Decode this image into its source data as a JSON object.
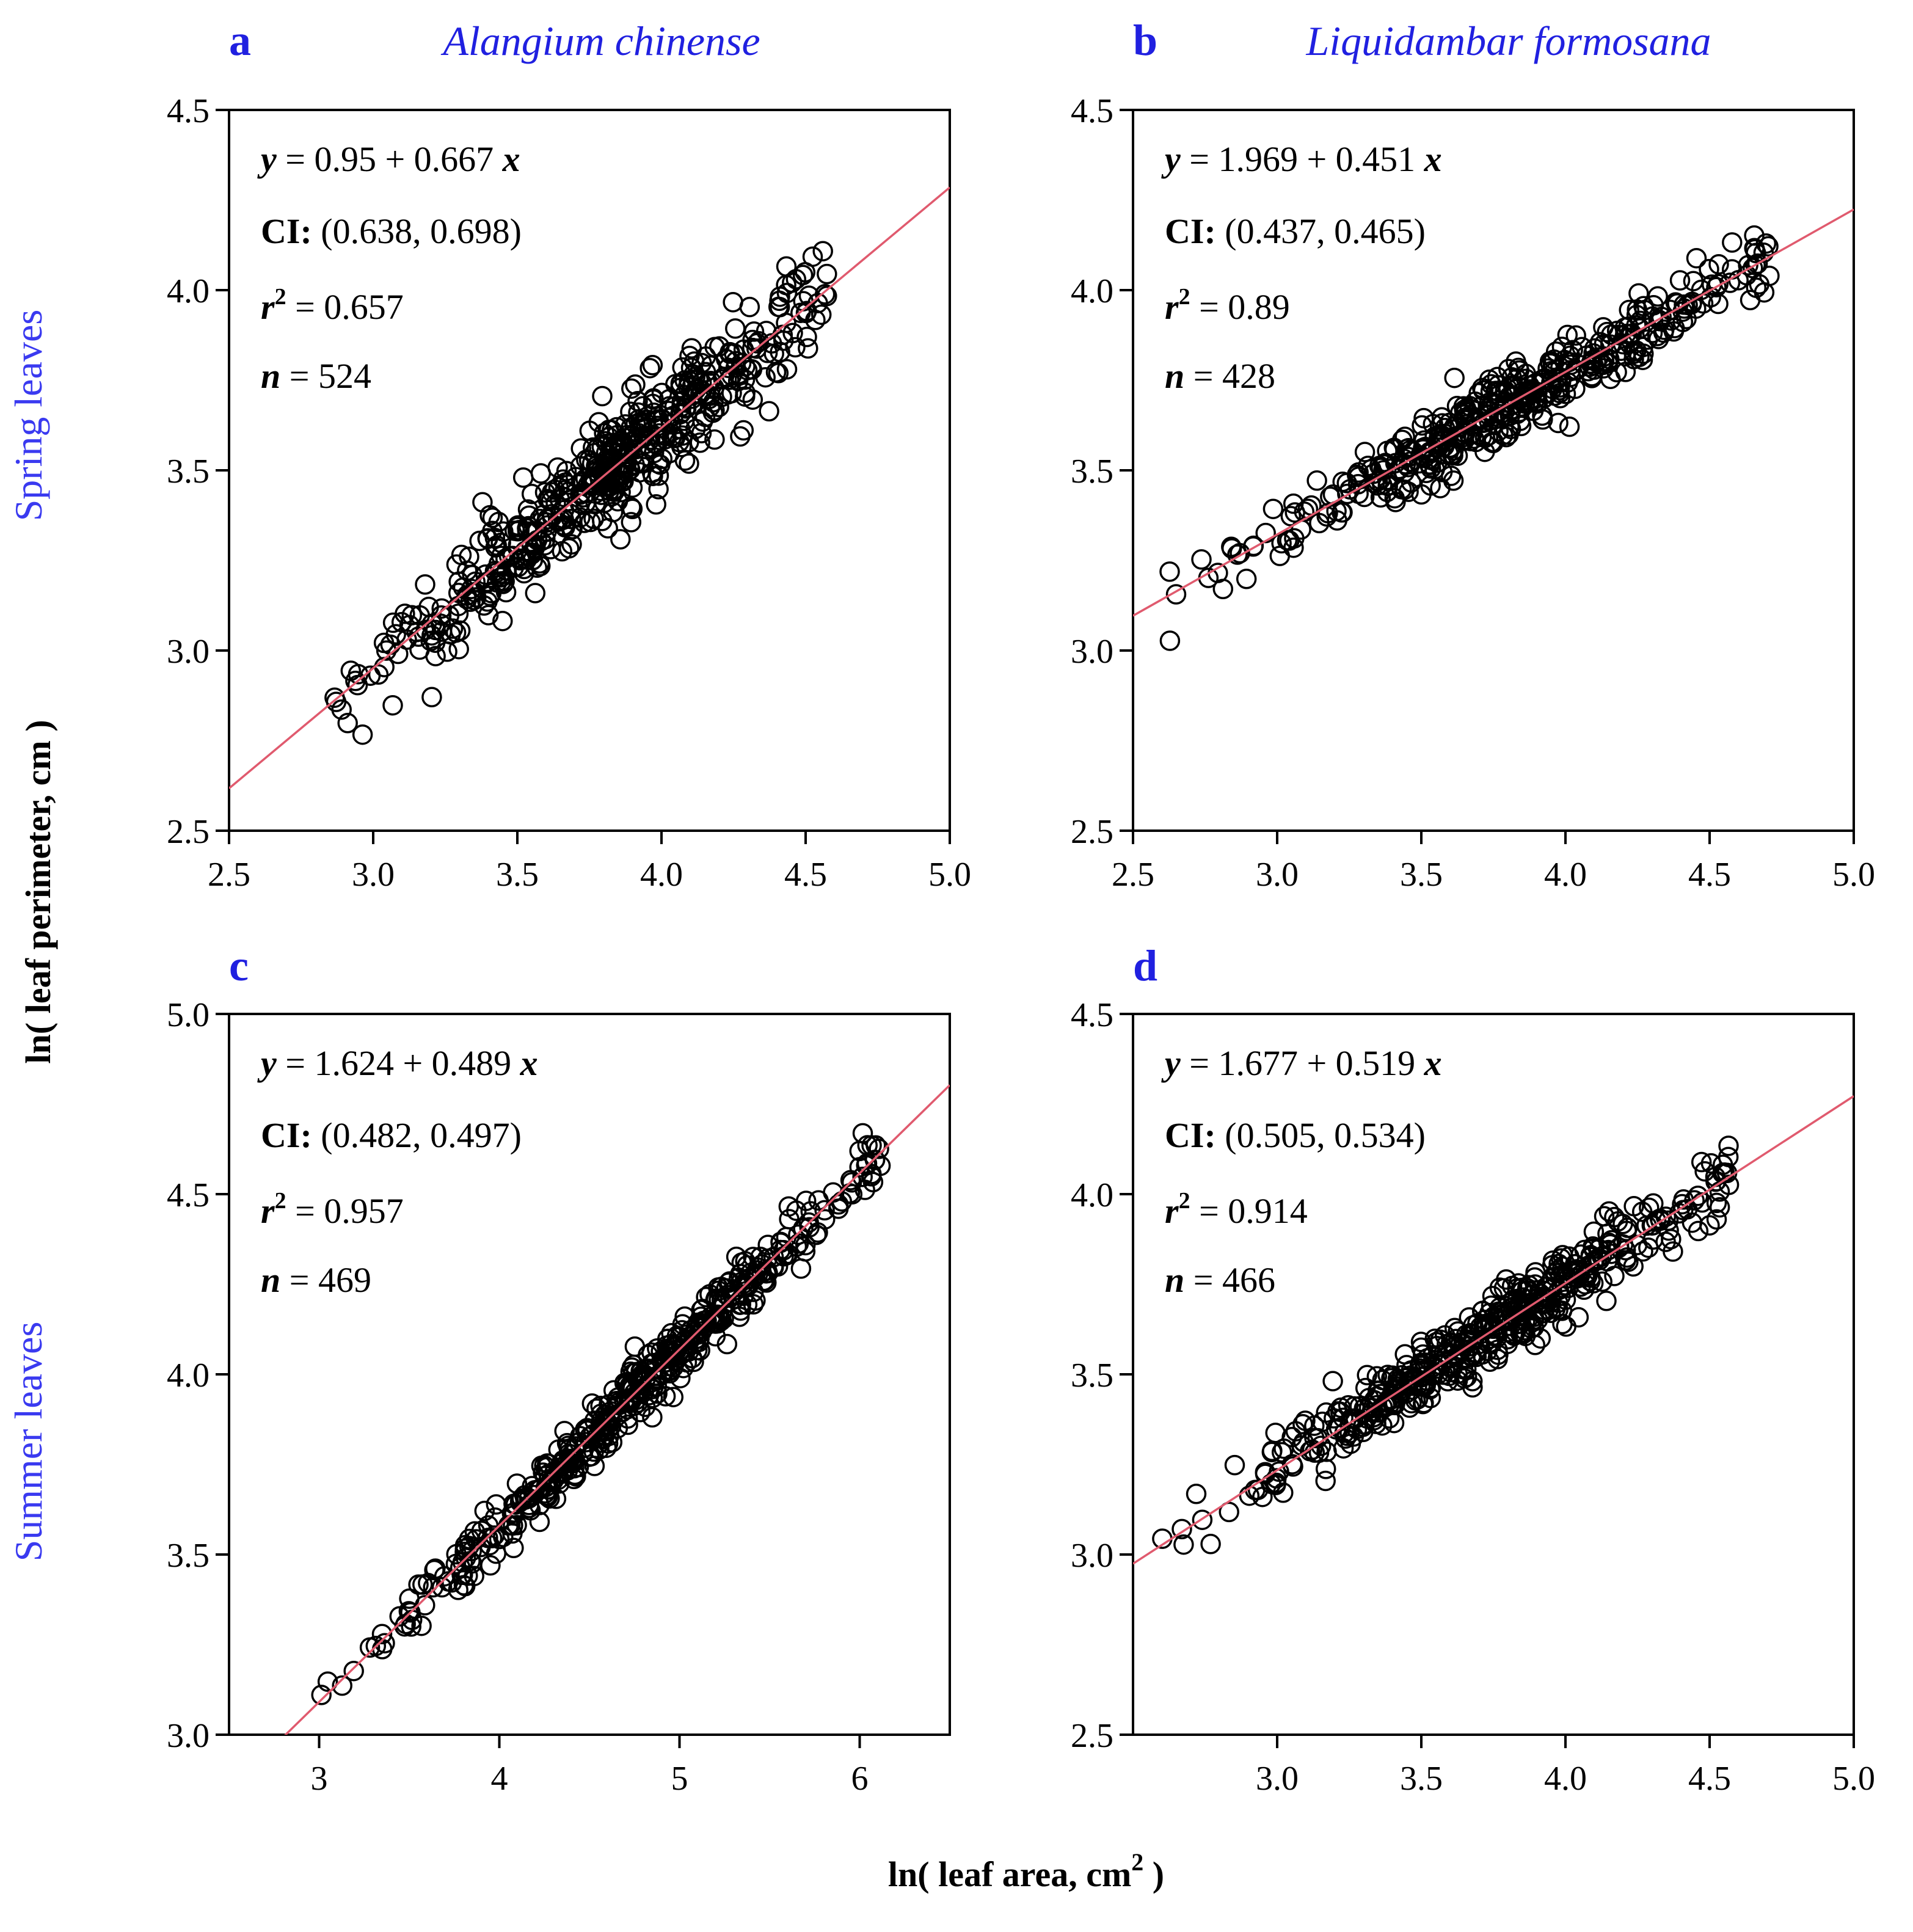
{
  "figure": {
    "ylabel": "ln( leaf perimeter,  cm )",
    "xlabel_main": "ln( leaf area,  cm",
    "xlabel_sup": "2",
    "xlabel_end": " )",
    "row_labels": [
      "Spring leaves",
      "Summer leaves"
    ],
    "species": [
      "Alangium chinense",
      "Liquidambar formosana"
    ],
    "colors": {
      "row_label": "#3a3af0",
      "species": "#2020e0",
      "fit_line": "#e05a6e",
      "marker": "#000000",
      "text": "#000000"
    }
  },
  "chart_data": [
    {
      "type": "scatter",
      "panel": "a",
      "title": "Alangium chinense",
      "xlim": [
        2.5,
        5.0
      ],
      "ylim": [
        2.5,
        4.5
      ],
      "xticks": [
        2.5,
        3.0,
        3.5,
        4.0,
        4.5,
        5.0
      ],
      "xtick_labels": [
        "2.5",
        "3.0",
        "3.5",
        "4.0",
        "4.5",
        "5.0"
      ],
      "yticks": [
        2.5,
        3.0,
        3.5,
        4.0,
        4.5
      ],
      "ytick_labels": [
        "2.5",
        "3.0",
        "3.5",
        "4.0",
        "4.5"
      ],
      "fit": {
        "intercept": 0.95,
        "slope": 0.667
      },
      "annotation": {
        "eq_y": "y",
        "eq_mid": " = 0.95 + 0.667 ",
        "eq_x": "x",
        "ci_label": "CI:",
        "ci_value": " (0.638, 0.698)",
        "r2_label": "r",
        "r2_sup": "2",
        "r2_value": " = 0.657",
        "n_label": "n",
        "n_value": " = 524"
      },
      "n": 524,
      "r2": 0.657,
      "ci": [
        0.638,
        0.698
      ],
      "point_summary": {
        "count": 524,
        "x_range": [
          2.84,
          4.58
        ],
        "residual_sd": 0.075
      }
    },
    {
      "type": "scatter",
      "panel": "b",
      "title": "Liquidambar formosana",
      "xlim": [
        2.5,
        5.0
      ],
      "ylim": [
        2.5,
        4.5
      ],
      "xticks": [
        2.5,
        3.0,
        3.5,
        4.0,
        4.5,
        5.0
      ],
      "xtick_labels": [
        "2.5",
        "3.0",
        "3.5",
        "4.0",
        "4.5",
        "5.0"
      ],
      "yticks": [
        2.5,
        3.0,
        3.5,
        4.0,
        4.5
      ],
      "ytick_labels": [
        "2.5",
        "3.0",
        "3.5",
        "4.0",
        "4.5"
      ],
      "fit": {
        "intercept": 1.969,
        "slope": 0.451
      },
      "annotation": {
        "eq_y": "y",
        "eq_mid": " = 1.969 + 0.451 ",
        "eq_x": "x",
        "ci_label": "CI:",
        "ci_value": " (0.437, 0.465)",
        "r2_label": "r",
        "r2_sup": "2",
        "r2_value": " = 0.89",
        "n_label": "n",
        "n_value": " = 428"
      },
      "n": 428,
      "r2": 0.89,
      "ci": [
        0.437,
        0.465
      ],
      "point_summary": {
        "count": 428,
        "x_range": [
          2.6,
          4.72
        ],
        "residual_sd": 0.05
      }
    },
    {
      "type": "scatter",
      "panel": "c",
      "title": "",
      "xlim": [
        2.5,
        6.5
      ],
      "ylim": [
        3.0,
        5.0
      ],
      "xticks": [
        3,
        4,
        5,
        6
      ],
      "xtick_labels": [
        "3",
        "4",
        "5",
        "6"
      ],
      "yticks": [
        3.0,
        3.5,
        4.0,
        4.5,
        5.0
      ],
      "ytick_labels": [
        "3.0",
        "3.5",
        "4.0",
        "4.5",
        "5.0"
      ],
      "fit": {
        "intercept": 1.624,
        "slope": 0.489
      },
      "annotation": {
        "eq_y": "y",
        "eq_mid": " = 1.624 + 0.489 ",
        "eq_x": "x",
        "ci_label": "CI:",
        "ci_value": " (0.482, 0.497)",
        "r2_label": "r",
        "r2_sup": "2",
        "r2_value": " = 0.957",
        "n_label": "n",
        "n_value": " = 469"
      },
      "n": 469,
      "r2": 0.957,
      "ci": [
        0.482,
        0.497
      ],
      "point_summary": {
        "count": 469,
        "x_range": [
          2.98,
          6.12
        ],
        "residual_sd": 0.04
      }
    },
    {
      "type": "scatter",
      "panel": "d",
      "title": "",
      "xlim": [
        2.5,
        5.0
      ],
      "ylim": [
        2.5,
        4.5
      ],
      "xticks": [
        3.0,
        3.5,
        4.0,
        4.5,
        5.0
      ],
      "xtick_labels": [
        "3.0",
        "3.5",
        "4.0",
        "4.5",
        "5.0"
      ],
      "yticks": [
        2.5,
        3.0,
        3.5,
        4.0,
        4.5
      ],
      "ytick_labels": [
        "2.5",
        "3.0",
        "3.5",
        "4.0",
        "4.5"
      ],
      "fit": {
        "intercept": 1.677,
        "slope": 0.519
      },
      "annotation": {
        "eq_y": "y",
        "eq_mid": " = 1.677 + 0.519 ",
        "eq_x": "x",
        "ci_label": "CI:",
        "ci_value": " (0.505, 0.534)",
        "r2_label": "r",
        "r2_sup": "2",
        "r2_value": " = 0.914",
        "n_label": "n",
        "n_value": " = 466"
      },
      "n": 466,
      "r2": 0.914,
      "ci": [
        0.505,
        0.534
      ],
      "point_summary": {
        "count": 466,
        "x_range": [
          2.6,
          4.58
        ],
        "residual_sd": 0.045
      }
    }
  ]
}
